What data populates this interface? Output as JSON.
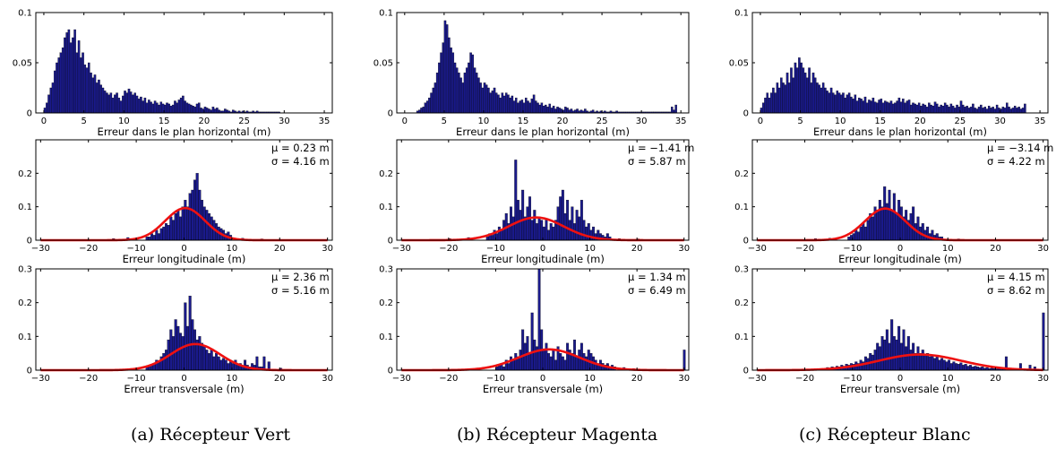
{
  "chart_data": [
    {
      "type": "bar",
      "panel": "a-horizontal",
      "xlabel": "Erreur dans le plan horizontal (m)",
      "xlim": [
        -1,
        36
      ],
      "ylim": [
        0,
        0.1
      ],
      "xticks": [
        0,
        5,
        10,
        15,
        20,
        25,
        30,
        35
      ],
      "xticklabels": [
        "0",
        "5",
        "10",
        "15",
        "20",
        "25",
        "30",
        "35"
      ],
      "yticks": [
        0,
        0.05,
        0.1
      ],
      "yticklabels": [
        "0",
        "0.05",
        "0.1"
      ],
      "x_start": 0,
      "bin_width": 0.25,
      "values": [
        0.005,
        0.01,
        0.018,
        0.025,
        0.03,
        0.042,
        0.05,
        0.055,
        0.06,
        0.065,
        0.075,
        0.08,
        0.083,
        0.07,
        0.075,
        0.083,
        0.06,
        0.072,
        0.055,
        0.06,
        0.048,
        0.045,
        0.05,
        0.04,
        0.035,
        0.038,
        0.03,
        0.033,
        0.028,
        0.025,
        0.022,
        0.02,
        0.018,
        0.02,
        0.015,
        0.018,
        0.02,
        0.015,
        0.012,
        0.017,
        0.022,
        0.02,
        0.024,
        0.021,
        0.018,
        0.02,
        0.017,
        0.014,
        0.016,
        0.012,
        0.015,
        0.01,
        0.013,
        0.011,
        0.009,
        0.012,
        0.01,
        0.008,
        0.011,
        0.009,
        0.008,
        0.01,
        0.009,
        0.007,
        0.008,
        0.012,
        0.01,
        0.013,
        0.015,
        0.017,
        0.012,
        0.01,
        0.009,
        0.008,
        0.007,
        0.006,
        0.009,
        0.01,
        0.005,
        0.004,
        0.006,
        0.005,
        0.004,
        0.003,
        0.006,
        0.004,
        0.005,
        0.003,
        0.002,
        0.002,
        0.004,
        0.003,
        0.002,
        0.001,
        0.003,
        0.002,
        0.001,
        0.002,
        0.001,
        0.002,
        0.001,
        0.002,
        0.001,
        0.001,
        0.002,
        0.001,
        0.002,
        0.001,
        0.001,
        0.001,
        0.001,
        0.001,
        0.001,
        0.001,
        0.001,
        0.001,
        0.001,
        0.001
      ]
    },
    {
      "type": "bar",
      "panel": "a-longitudinal",
      "xlabel": "Erreur longitudinale (m)",
      "xlim": [
        -31,
        31
      ],
      "ylim": [
        0,
        0.3
      ],
      "xticks": [
        -30,
        -20,
        -10,
        0,
        10,
        20,
        30
      ],
      "xticklabels": [
        "−30",
        "−20",
        "−10",
        "0",
        "10",
        "20",
        "30"
      ],
      "yticks": [
        0,
        0.1,
        0.2
      ],
      "yticklabels": [
        "0",
        "0.1",
        "0.2"
      ],
      "annotation": [
        "μ = 0.23 m",
        "σ = 4.16 m"
      ],
      "mu": 0.23,
      "sigma": 4.16,
      "x_start": -8,
      "bin_width": 0.5,
      "values": [
        0.01,
        0.01,
        0.02,
        0.015,
        0.03,
        0.02,
        0.035,
        0.04,
        0.05,
        0.045,
        0.07,
        0.06,
        0.08,
        0.09,
        0.07,
        0.1,
        0.12,
        0.1,
        0.14,
        0.15,
        0.18,
        0.2,
        0.15,
        0.12,
        0.1,
        0.09,
        0.08,
        0.07,
        0.06,
        0.05,
        0.04,
        0.035,
        0.03,
        0.02,
        0.025,
        0.015
      ],
      "extra_bars": [
        {
          "x": -15,
          "value": 0.005
        },
        {
          "x": -12,
          "value": 0.008
        },
        {
          "x": 12,
          "value": 0.006
        },
        {
          "x": 16,
          "value": 0.004
        }
      ]
    },
    {
      "type": "bar",
      "panel": "a-transversal",
      "xlabel": "Erreur transversale (m)",
      "xlim": [
        -31,
        31
      ],
      "ylim": [
        0,
        0.3
      ],
      "xticks": [
        -30,
        -20,
        -10,
        0,
        10,
        20,
        30
      ],
      "xticklabels": [
        "−30",
        "−20",
        "−10",
        "0",
        "10",
        "20",
        "30"
      ],
      "yticks": [
        0,
        0.1,
        0.2,
        0.3
      ],
      "yticklabels": [
        "0",
        "0.1",
        "0.2",
        "0.3"
      ],
      "annotation": [
        "μ = 2.36 m",
        "σ = 5.16 m"
      ],
      "mu": 2.36,
      "sigma": 5.16,
      "x_start": -8,
      "bin_width": 0.5,
      "values": [
        0.01,
        0.01,
        0.015,
        0.02,
        0.03,
        0.025,
        0.04,
        0.05,
        0.06,
        0.09,
        0.12,
        0.1,
        0.15,
        0.13,
        0.11,
        0.1,
        0.2,
        0.13,
        0.22,
        0.15,
        0.12,
        0.09,
        0.1,
        0.08,
        0.07,
        0.06,
        0.05,
        0.06,
        0.04,
        0.05,
        0.04,
        0.03,
        0.035,
        0.03,
        0.02,
        0.025,
        0.02,
        0.03,
        0.015,
        0.02,
        0.01,
        0.03,
        0.015,
        0.01,
        0.02,
        0.015,
        0.04,
        0.01,
        0.01
      ],
      "extra_bars": [
        {
          "x": 16.5,
          "value": 0.04
        },
        {
          "x": 17.5,
          "value": 0.025
        },
        {
          "x": 20,
          "value": 0.006
        }
      ]
    },
    {
      "type": "bar",
      "panel": "b-horizontal",
      "xlabel": "Erreur dans le plan horizontal (m)",
      "xlim": [
        -1,
        36
      ],
      "ylim": [
        0,
        0.1
      ],
      "xticks": [
        0,
        5,
        10,
        15,
        20,
        25,
        30,
        35
      ],
      "xticklabels": [
        "0",
        "5",
        "10",
        "15",
        "20",
        "25",
        "30",
        "35"
      ],
      "yticks": [
        0,
        0.05,
        0.1
      ],
      "yticklabels": [
        "0",
        "0.05",
        "0.1"
      ],
      "x_start": 1.5,
      "bin_width": 0.25,
      "values": [
        0.002,
        0.003,
        0.005,
        0.006,
        0.01,
        0.012,
        0.015,
        0.02,
        0.025,
        0.03,
        0.04,
        0.05,
        0.06,
        0.07,
        0.092,
        0.088,
        0.075,
        0.065,
        0.06,
        0.05,
        0.045,
        0.04,
        0.035,
        0.03,
        0.04,
        0.045,
        0.05,
        0.06,
        0.058,
        0.045,
        0.04,
        0.035,
        0.03,
        0.025,
        0.03,
        0.028,
        0.025,
        0.02,
        0.022,
        0.025,
        0.02,
        0.018,
        0.015,
        0.02,
        0.017,
        0.02,
        0.018,
        0.015,
        0.017,
        0.012,
        0.015,
        0.01,
        0.012,
        0.013,
        0.01,
        0.015,
        0.012,
        0.01,
        0.014,
        0.018,
        0.012,
        0.01,
        0.008,
        0.01,
        0.007,
        0.008,
        0.006,
        0.009,
        0.005,
        0.007,
        0.004,
        0.006,
        0.005,
        0.004,
        0.003,
        0.006,
        0.005,
        0.003,
        0.004,
        0.002,
        0.003,
        0.004,
        0.002,
        0.003,
        0.002,
        0.004,
        0.002,
        0.001,
        0.002,
        0.003,
        0.001,
        0.002,
        0.001,
        0.002,
        0.001,
        0.002,
        0.001,
        0.001,
        0.002,
        0.001,
        0.001,
        0.002,
        0.001,
        0.001,
        0.001,
        0.001,
        0.001,
        0.001,
        0.001,
        0.001,
        0.001,
        0.001,
        0.001,
        0.001,
        0.001,
        0.001,
        0.001,
        0.001,
        0.001,
        0.001,
        0.001,
        0.001,
        0.001,
        0.001,
        0.001,
        0.001,
        0.001,
        0.001,
        0.001,
        0.006,
        0.003,
        0.008
      ],
      "extra_bars": []
    },
    {
      "type": "bar",
      "panel": "b-longitudinal",
      "xlabel": "Erreur longitudinale (m)",
      "xlim": [
        -31,
        31
      ],
      "ylim": [
        0,
        0.3
      ],
      "xticks": [
        -30,
        -20,
        -10,
        0,
        10,
        20,
        30
      ],
      "xticklabels": [
        "−30",
        "−20",
        "−10",
        "0",
        "10",
        "20",
        "30"
      ],
      "yticks": [
        0,
        0.1,
        0.2
      ],
      "yticklabels": [
        "0",
        "0.1",
        "0.2"
      ],
      "annotation": [
        "μ = −1.41 m",
        "σ = 5.87 m"
      ],
      "mu": -1.41,
      "sigma": 5.87,
      "x_start": -12,
      "bin_width": 0.5,
      "values": [
        0.01,
        0.02,
        0.015,
        0.03,
        0.02,
        0.04,
        0.03,
        0.06,
        0.08,
        0.05,
        0.1,
        0.07,
        0.24,
        0.12,
        0.09,
        0.15,
        0.07,
        0.1,
        0.13,
        0.06,
        0.09,
        0.05,
        0.07,
        0.06,
        0.04,
        0.06,
        0.03,
        0.05,
        0.04,
        0.06,
        0.1,
        0.13,
        0.15,
        0.08,
        0.12,
        0.06,
        0.1,
        0.05,
        0.09,
        0.07,
        0.12,
        0.06,
        0.04,
        0.05,
        0.03,
        0.04,
        0.02,
        0.03,
        0.02,
        0.015,
        0.01,
        0.02,
        0.01
      ],
      "extra_bars": [
        {
          "x": -20,
          "value": 0.005
        },
        {
          "x": -16,
          "value": 0.008
        },
        {
          "x": 16,
          "value": 0.005
        },
        {
          "x": 20,
          "value": 0.004
        }
      ]
    },
    {
      "type": "bar",
      "panel": "b-transversal",
      "xlabel": "Erreur transversale (m)",
      "xlim": [
        -31,
        31
      ],
      "ylim": [
        0,
        0.3
      ],
      "xticks": [
        -30,
        -20,
        -10,
        0,
        10,
        20,
        30
      ],
      "xticklabels": [
        "−30",
        "−20",
        "−10",
        "0",
        "10",
        "20",
        "30"
      ],
      "yticks": [
        0,
        0.1,
        0.2,
        0.3
      ],
      "yticklabels": [
        "0",
        "0.1",
        "0.2",
        "0.3"
      ],
      "annotation": [
        "μ = 1.34 m",
        "σ = 6.49 m"
      ],
      "mu": 1.34,
      "sigma": 6.49,
      "x_start": -10,
      "bin_width": 0.5,
      "values": [
        0.01,
        0.015,
        0.02,
        0.01,
        0.03,
        0.02,
        0.04,
        0.03,
        0.05,
        0.04,
        0.06,
        0.12,
        0.08,
        0.1,
        0.05,
        0.17,
        0.09,
        0.07,
        0.3,
        0.12,
        0.06,
        0.08,
        0.05,
        0.04,
        0.06,
        0.03,
        0.07,
        0.05,
        0.04,
        0.03,
        0.08,
        0.06,
        0.05,
        0.09,
        0.04,
        0.06,
        0.08,
        0.05,
        0.04,
        0.06,
        0.05,
        0.04,
        0.03,
        0.02,
        0.03,
        0.02,
        0.015,
        0.02,
        0.01,
        0.015,
        0.01
      ],
      "extra_bars": [
        {
          "x": 12.5,
          "value": 0.02
        },
        {
          "x": 13.5,
          "value": 0.015
        },
        {
          "x": 15,
          "value": 0.01
        },
        {
          "x": 17,
          "value": 0.008
        },
        {
          "x": 19,
          "value": 0.005
        },
        {
          "x": 29.8,
          "value": 0.06
        }
      ]
    },
    {
      "type": "bar",
      "panel": "c-horizontal",
      "xlabel": "Erreur dans le plan horizontal (m)",
      "xlim": [
        -1,
        36
      ],
      "ylim": [
        0,
        0.1
      ],
      "xticks": [
        0,
        5,
        10,
        15,
        20,
        25,
        30,
        35
      ],
      "xticklabels": [
        "0",
        "5",
        "10",
        "15",
        "20",
        "25",
        "30",
        "35"
      ],
      "yticks": [
        0,
        0.05,
        0.1
      ],
      "yticklabels": [
        "0",
        "0.05",
        "0.1"
      ],
      "x_start": 0,
      "bin_width": 0.25,
      "values": [
        0.005,
        0.01,
        0.015,
        0.02,
        0.015,
        0.02,
        0.025,
        0.02,
        0.03,
        0.025,
        0.035,
        0.03,
        0.028,
        0.04,
        0.03,
        0.045,
        0.035,
        0.05,
        0.045,
        0.055,
        0.05,
        0.045,
        0.04,
        0.035,
        0.045,
        0.03,
        0.04,
        0.035,
        0.03,
        0.028,
        0.025,
        0.03,
        0.025,
        0.022,
        0.02,
        0.025,
        0.02,
        0.018,
        0.022,
        0.02,
        0.018,
        0.02,
        0.015,
        0.018,
        0.02,
        0.016,
        0.014,
        0.018,
        0.012,
        0.015,
        0.014,
        0.012,
        0.016,
        0.01,
        0.013,
        0.012,
        0.015,
        0.011,
        0.01,
        0.013,
        0.014,
        0.01,
        0.012,
        0.011,
        0.01,
        0.012,
        0.009,
        0.01,
        0.012,
        0.015,
        0.011,
        0.014,
        0.01,
        0.012,
        0.013,
        0.008,
        0.01,
        0.009,
        0.008,
        0.01,
        0.007,
        0.009,
        0.008,
        0.006,
        0.01,
        0.008,
        0.007,
        0.011,
        0.009,
        0.006,
        0.008,
        0.007,
        0.01,
        0.008,
        0.006,
        0.009,
        0.007,
        0.005,
        0.008,
        0.006,
        0.012,
        0.008,
        0.006,
        0.007,
        0.005,
        0.006,
        0.009,
        0.005,
        0.004,
        0.006,
        0.008,
        0.005,
        0.006,
        0.004,
        0.007,
        0.005,
        0.006,
        0.004,
        0.008,
        0.005,
        0.004,
        0.006,
        0.005,
        0.01,
        0.006,
        0.004,
        0.005,
        0.007,
        0.005,
        0.006,
        0.004,
        0.005,
        0.009
      ],
      "extra_bars": []
    },
    {
      "type": "bar",
      "panel": "c-longitudinal",
      "xlabel": "Erreur longitudinale (m)",
      "xlim": [
        -31,
        31
      ],
      "ylim": [
        0,
        0.3
      ],
      "xticks": [
        -30,
        -20,
        -10,
        0,
        10,
        20,
        30
      ],
      "xticklabels": [
        "−30",
        "−20",
        "−10",
        "0",
        "10",
        "20",
        "30"
      ],
      "yticks": [
        0,
        0.1,
        0.2
      ],
      "yticklabels": [
        "0",
        "0.1",
        "0.2"
      ],
      "annotation": [
        "μ = −3.14 m",
        "σ = 4.22 m"
      ],
      "mu": -3.14,
      "sigma": 4.22,
      "x_start": -11,
      "bin_width": 0.5,
      "values": [
        0.01,
        0.015,
        0.02,
        0.03,
        0.025,
        0.04,
        0.05,
        0.04,
        0.06,
        0.08,
        0.07,
        0.1,
        0.09,
        0.12,
        0.1,
        0.16,
        0.11,
        0.15,
        0.09,
        0.14,
        0.08,
        0.12,
        0.1,
        0.07,
        0.09,
        0.06,
        0.08,
        0.1,
        0.05,
        0.07,
        0.04,
        0.05,
        0.03,
        0.04,
        0.02,
        0.03,
        0.015,
        0.02,
        0.01,
        0.01
      ],
      "extra_bars": [
        {
          "x": -18,
          "value": 0.005
        },
        {
          "x": -15,
          "value": 0.006
        },
        {
          "x": 12,
          "value": 0.004
        }
      ]
    },
    {
      "type": "bar",
      "panel": "c-transversal",
      "xlabel": "Erreur transversale (m)",
      "xlim": [
        -31,
        31
      ],
      "ylim": [
        0,
        0.3
      ],
      "xticks": [
        -30,
        -20,
        -10,
        0,
        10,
        20,
        30
      ],
      "xticklabels": [
        "−30",
        "−20",
        "−10",
        "0",
        "10",
        "20",
        "30"
      ],
      "yticks": [
        0,
        0.1,
        0.2,
        0.3
      ],
      "yticklabels": [
        "0",
        "0.1",
        "0.2",
        "0.3"
      ],
      "annotation": [
        "μ = 4.15 m",
        "σ = 8.62 m"
      ],
      "mu": 4.15,
      "sigma": 8.62,
      "x_start": -16,
      "bin_width": 0.5,
      "values": [
        0.005,
        0.008,
        0.006,
        0.01,
        0.008,
        0.012,
        0.01,
        0.015,
        0.012,
        0.018,
        0.015,
        0.02,
        0.018,
        0.025,
        0.02,
        0.03,
        0.025,
        0.04,
        0.035,
        0.05,
        0.045,
        0.06,
        0.08,
        0.07,
        0.1,
        0.09,
        0.12,
        0.08,
        0.15,
        0.1,
        0.09,
        0.13,
        0.08,
        0.12,
        0.07,
        0.1,
        0.06,
        0.08,
        0.05,
        0.07,
        0.05,
        0.06,
        0.045,
        0.05,
        0.04,
        0.045,
        0.035,
        0.04,
        0.03,
        0.035,
        0.03,
        0.025,
        0.03,
        0.02,
        0.025,
        0.02,
        0.018,
        0.022,
        0.015,
        0.018,
        0.012,
        0.015,
        0.01,
        0.012,
        0.01,
        0.008,
        0.01,
        0.006,
        0.008,
        0.005,
        0.006,
        0.005,
        0.004,
        0.005,
        0.003,
        0.004,
        0.003,
        0.002
      ],
      "extra_bars": [
        {
          "x": 22,
          "value": 0.04
        },
        {
          "x": 25,
          "value": 0.02
        },
        {
          "x": 27,
          "value": 0.015
        },
        {
          "x": 28,
          "value": 0.01
        },
        {
          "x": 29.8,
          "value": 0.17
        }
      ]
    }
  ],
  "captions": [
    "(a) Récepteur Vert",
    "(b) Récepteur Magenta",
    "(c) Récepteur Blanc"
  ],
  "colors": {
    "bar": "#1a1a8c",
    "bar_edge": "#000000",
    "fit": "#ee1111",
    "axis": "#000000"
  }
}
